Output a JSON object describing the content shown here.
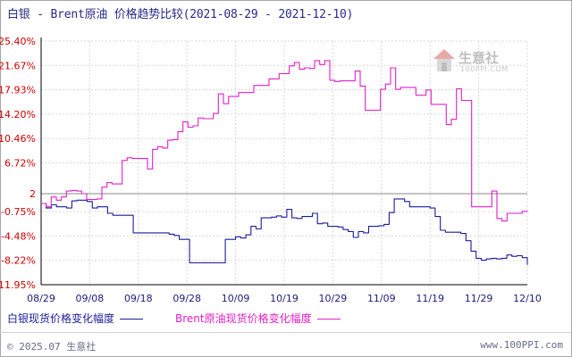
{
  "title": "白银 - Brent原油 价格趋势比较(2021-08-29 - 2021-12-10)",
  "watermark": {
    "brand": "生意社",
    "url": "100PPI.COM"
  },
  "footer": {
    "copyright": "© 2025.07 生意社",
    "site": "www.100PPI.com"
  },
  "colors": {
    "silver": "#1c1c9c",
    "brent": "#e020c8",
    "grid": "#d8d8d8",
    "axis": "#000000",
    "ytick": "#cc0000",
    "xtick": "#1c1c7c",
    "zero": "#888888"
  },
  "chart_data": {
    "type": "line",
    "title": "白银 - Brent原油 价格趋势比较(2021-08-29 - 2021-12-10)",
    "xlabel": "",
    "ylabel": "",
    "x_tick_labels": [
      "08/29",
      "09/08",
      "09/18",
      "09/28",
      "10/09",
      "10/19",
      "10/29",
      "11/09",
      "11/19",
      "11/29",
      "12/10"
    ],
    "y_tick_labels": [
      "25.40%",
      "21.67%",
      "17.93%",
      "14.20%",
      "10.46%",
      "6.72%",
      "2",
      "-0.75%",
      "-4.48%",
      "-8.22%",
      "-11.95%"
    ],
    "y_tick_values": [
      25.4,
      21.67,
      17.93,
      14.2,
      10.46,
      6.72,
      2,
      -0.75,
      -4.48,
      -8.22,
      -11.95
    ],
    "ylim": [
      -11.95,
      25.4
    ],
    "grid": true,
    "legend_position": "bottom-left",
    "series": [
      {
        "name": "白银现货价格变化幅度",
        "color": "#1c1c9c",
        "values": [
          0.5,
          -0.2,
          0.3,
          0.0,
          0.0,
          -0.2,
          0.9,
          1.0,
          1.0,
          0.8,
          -0.2,
          0.0,
          0.0,
          -1.0,
          -1.3,
          -1.3,
          -1.3,
          -1.3,
          -4.0,
          -4.0,
          -4.0,
          -4.0,
          -4.0,
          -4.0,
          -4.0,
          -4.2,
          -4.4,
          -5.0,
          -5.0,
          -8.6,
          -8.6,
          -8.6,
          -8.6,
          -8.6,
          -8.6,
          -8.6,
          -5.0,
          -5.0,
          -4.6,
          -4.8,
          -4.3,
          -3.0,
          -3.4,
          -1.7,
          -1.7,
          -1.6,
          -1.4,
          -1.6,
          -0.4,
          -1.7,
          -1.8,
          -1.5,
          -1.5,
          -1.0,
          -2.6,
          -2.5,
          -3.0,
          -3.0,
          -3.1,
          -3.5,
          -3.8,
          -4.7,
          -3.8,
          -4.0,
          -3.0,
          -3.0,
          -2.9,
          -2.7,
          -0.9,
          1.2,
          1.2,
          0.8,
          0.0,
          0.0,
          0.0,
          0.0,
          -0.2,
          -1.5,
          -3.6,
          -3.9,
          -3.9,
          -3.9,
          -4.1,
          -5.2,
          -6.8,
          -7.9,
          -8.2,
          -8.0,
          -7.9,
          -8.0,
          -7.9,
          -7.4,
          -7.6,
          -7.5,
          -7.8,
          -8.9
        ]
      },
      {
        "name": "Brent原油现货价格变化幅度",
        "color": "#e020c8",
        "values": [
          0.5,
          0.0,
          1.5,
          1.0,
          1.5,
          2.4,
          2.5,
          2.4,
          2.0,
          1.1,
          1.1,
          1.2,
          3.0,
          3.7,
          3.5,
          3.5,
          7.1,
          7.5,
          7.4,
          7.4,
          7.4,
          5.8,
          8.8,
          9.2,
          9.0,
          10.2,
          10.3,
          11.5,
          13.0,
          12.2,
          12.4,
          13.6,
          13.5,
          13.5,
          14.3,
          17.3,
          15.8,
          16.9,
          16.9,
          17.5,
          17.5,
          17.5,
          18.6,
          18.6,
          18.6,
          19.6,
          19.6,
          20.4,
          20.4,
          21.6,
          22.1,
          21.1,
          21.3,
          21.2,
          22.4,
          21.8,
          22.4,
          19.4,
          19.2,
          19.3,
          19.3,
          19.3,
          20.8,
          18.5,
          14.8,
          14.8,
          14.8,
          18.0,
          18.8,
          21.3,
          18.0,
          18.3,
          18.3,
          18.3,
          17.1,
          17.1,
          17.9,
          15.7,
          15.7,
          15.7,
          12.6,
          13.4,
          18.1,
          16.3,
          16.3,
          0.0,
          0.0,
          0.0,
          0.0,
          2.4,
          -1.8,
          -2.2,
          -1.0,
          -1.0,
          -1.0,
          -0.7,
          -0.8
        ]
      }
    ]
  },
  "legend": {
    "silver_label": "白银现货价格变化幅度",
    "brent_label": "Brent原油现货价格变化幅度"
  }
}
